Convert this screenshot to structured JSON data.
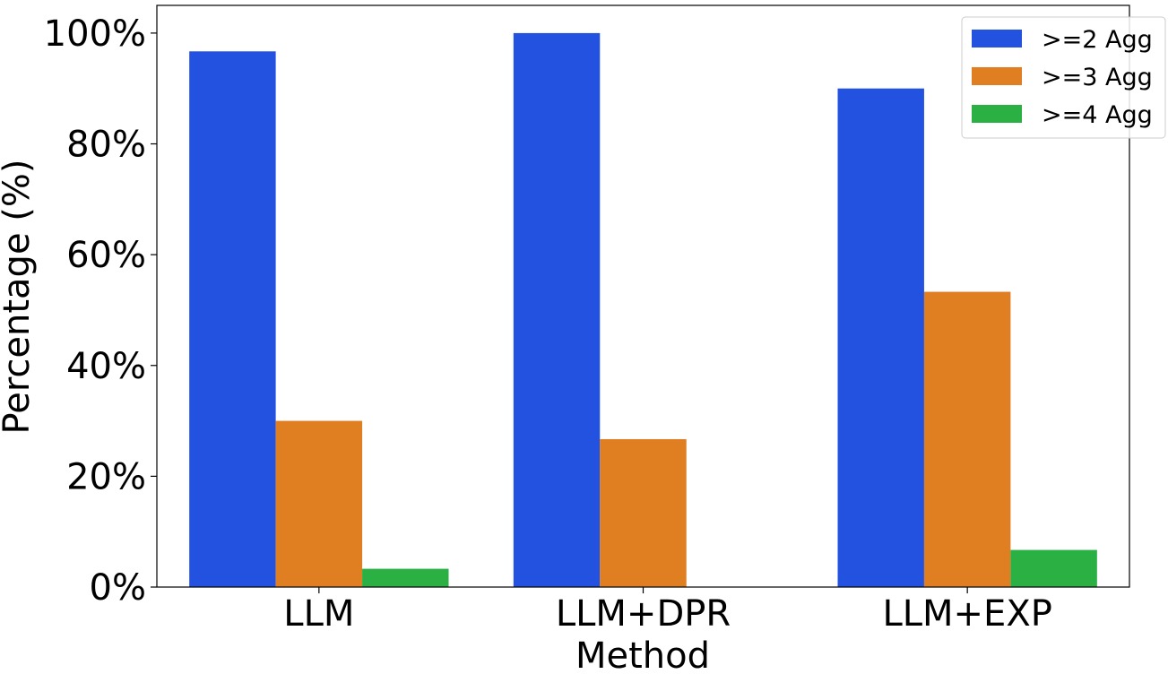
{
  "chart_data": {
    "type": "bar",
    "title": "",
    "xlabel": "Method",
    "ylabel": "Percentage (%)",
    "categories": [
      "LLM",
      "LLM+DPR",
      "LLM+EXP"
    ],
    "series": [
      {
        "name": ">=2 Agg",
        "color": "#2351e0",
        "values": [
          96.7,
          100.0,
          90.0
        ]
      },
      {
        "name": ">=3 Agg",
        "color": "#e07f22",
        "values": [
          30.0,
          26.7,
          53.3
        ]
      },
      {
        "name": ">=4 Agg",
        "color": "#2bb043",
        "values": [
          3.3,
          0.0,
          6.7
        ]
      }
    ],
    "ylim": [
      0,
      105
    ],
    "yticks": [
      0,
      20,
      40,
      60,
      80,
      100
    ],
    "ytick_labels": [
      "0%",
      "20%",
      "40%",
      "60%",
      "80%",
      "100%"
    ],
    "grid": false,
    "legend_position": "top-right"
  }
}
